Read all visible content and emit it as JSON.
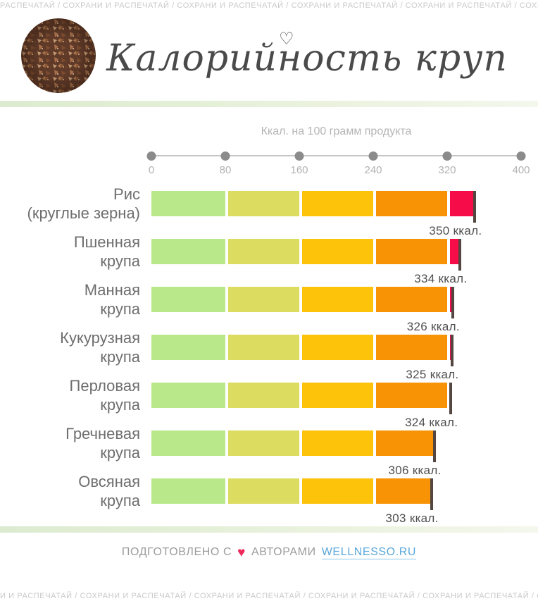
{
  "strips": {
    "top_text": "РАСПЕЧАТАЙ / СОХРАНИ И РАСПЕЧАТАЙ / СОХРАНИ И РАСПЕЧАТАЙ / СОХРАНИ И РАСПЕЧАТАЙ / СОХРАНИ И РАСПЕЧАТАЙ / СОХРАНИ И РАСПЕЧАТАЙ / СОХРАНИ И РАСПЕЧАТАЙ",
    "bottom_text": "И И РАСПЕЧАТАЙ / СОХРАНИ И РАСПЕЧАТАЙ / СОХРАНИ И РАСПЕЧАТАЙ / СОХРАНИ И РАСПЕЧАТАЙ / СОХРАНИ И РАСПЕЧАТАЙ / СОХРАНИ И РАСПЕЧАТАЙ / СОХРАНИ И"
  },
  "header": {
    "title": "Калорийность круп",
    "heart_glyph": "♡"
  },
  "chart_data": {
    "type": "bar",
    "orientation": "horizontal",
    "title": "Калорийность круп",
    "axis_title": "Ккал. на 100 грамм продукта",
    "unit": "ккал.",
    "xlim": [
      0,
      400
    ],
    "x_ticks": [
      0,
      80,
      160,
      240,
      320,
      400
    ],
    "band_size": 80,
    "band_colors": [
      "#b9e88b",
      "#dbdc60",
      "#fdc20a",
      "#f89305",
      "#f50c48"
    ],
    "grid": false,
    "legend": false,
    "categories": [
      "Рис (круглые зерна)",
      "Пшенная крупа",
      "Манная крупа",
      "Кукурузная крупа",
      "Перловая крупа",
      "Гречневая крупа",
      "Овсяная крупа"
    ],
    "values": [
      350,
      334,
      326,
      325,
      324,
      306,
      303
    ],
    "items": [
      {
        "label_lines": [
          "Рис",
          "(круглые зерна)"
        ],
        "value": 350
      },
      {
        "label_lines": [
          "Пшенная",
          "крупа"
        ],
        "value": 334
      },
      {
        "label_lines": [
          "Манная",
          "крупа"
        ],
        "value": 326
      },
      {
        "label_lines": [
          "Кукурузная",
          "крупа"
        ],
        "value": 325
      },
      {
        "label_lines": [
          "Перловая",
          "крупа"
        ],
        "value": 324
      },
      {
        "label_lines": [
          "Гречневая",
          "крупа"
        ],
        "value": 306
      },
      {
        "label_lines": [
          "Овсяная",
          "крупа"
        ],
        "value": 303
      }
    ]
  },
  "footer": {
    "prepared_text": "ПОДГОТОВЛЕНО С",
    "heart_glyph": "♥",
    "authors_text": "АВТОРАМИ",
    "link_text": "WELLNESSO.RU"
  },
  "colors": {
    "end_tick": "#544640",
    "link": "#5aa8da",
    "footer_heart": "#f0295b",
    "strip_text": "#c9c9c9"
  }
}
